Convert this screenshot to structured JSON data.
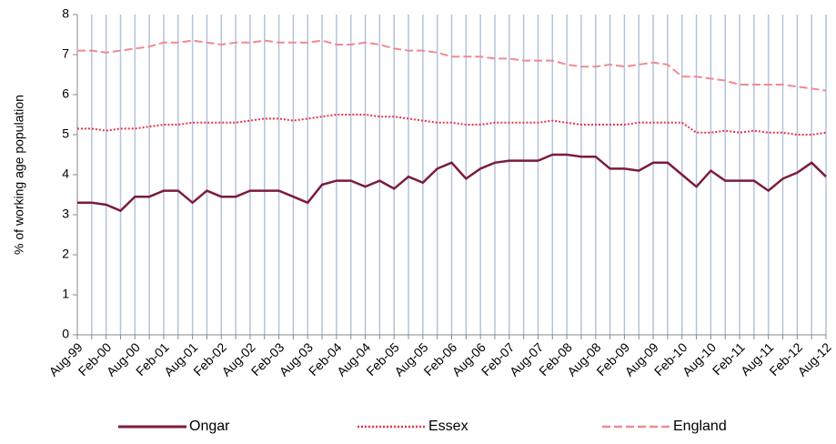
{
  "chart_data": {
    "type": "line",
    "y_label": "% of working age population",
    "categories": [
      "Aug-99",
      null,
      "Feb-00",
      null,
      "Aug-00",
      null,
      "Feb-01",
      null,
      "Aug-01",
      null,
      "Feb-02",
      null,
      "Aug-02",
      null,
      "Feb-03",
      null,
      "Aug-03",
      null,
      "Feb-04",
      null,
      "Aug-04",
      null,
      "Feb-05",
      null,
      "Aug-05",
      null,
      "Feb-06",
      null,
      "Aug-06",
      null,
      "Feb-07",
      null,
      "Aug-07",
      null,
      "Feb-08",
      null,
      "Aug-08",
      null,
      "Feb-09",
      null,
      "Aug-09",
      null,
      "Feb-10",
      null,
      "Aug-10",
      null,
      "Feb-11",
      null,
      "Aug-11",
      null,
      "Feb-12",
      null,
      "Aug-12"
    ],
    "series": [
      {
        "name": "Ongar",
        "color": "#7b1c3a",
        "style": "solid",
        "values": [
          3.3,
          3.3,
          3.25,
          3.1,
          3.45,
          3.45,
          3.6,
          3.6,
          3.3,
          3.6,
          3.45,
          3.45,
          3.6,
          3.6,
          3.6,
          3.45,
          3.3,
          3.75,
          3.85,
          3.85,
          3.7,
          3.85,
          3.65,
          3.95,
          3.8,
          4.15,
          4.3,
          3.9,
          4.15,
          4.3,
          4.35,
          4.35,
          4.35,
          4.5,
          4.5,
          4.45,
          4.45,
          4.15,
          4.15,
          4.1,
          4.3,
          4.3,
          4.0,
          3.7,
          4.1,
          3.85,
          3.85,
          3.85,
          3.6,
          3.9,
          4.05,
          4.3,
          3.95
        ]
      },
      {
        "name": "Essex",
        "color": "#e8334a",
        "style": "dotted",
        "values": [
          5.15,
          5.15,
          5.1,
          5.15,
          5.15,
          5.2,
          5.25,
          5.25,
          5.3,
          5.3,
          5.3,
          5.3,
          5.35,
          5.4,
          5.4,
          5.35,
          5.4,
          5.45,
          5.5,
          5.5,
          5.5,
          5.45,
          5.45,
          5.4,
          5.35,
          5.3,
          5.3,
          5.25,
          5.25,
          5.3,
          5.3,
          5.3,
          5.3,
          5.35,
          5.3,
          5.25,
          5.25,
          5.25,
          5.25,
          5.3,
          5.3,
          5.3,
          5.3,
          5.05,
          5.05,
          5.1,
          5.05,
          5.1,
          5.05,
          5.05,
          5.0,
          5.0,
          5.05
        ]
      },
      {
        "name": "England",
        "color": "#f08a94",
        "style": "dashed",
        "values": [
          7.1,
          7.1,
          7.05,
          7.1,
          7.15,
          7.2,
          7.3,
          7.3,
          7.35,
          7.3,
          7.25,
          7.3,
          7.3,
          7.35,
          7.3,
          7.3,
          7.3,
          7.35,
          7.25,
          7.25,
          7.3,
          7.25,
          7.15,
          7.1,
          7.1,
          7.05,
          6.95,
          6.95,
          6.95,
          6.9,
          6.9,
          6.85,
          6.85,
          6.85,
          6.75,
          6.7,
          6.7,
          6.75,
          6.7,
          6.75,
          6.8,
          6.75,
          6.45,
          6.45,
          6.4,
          6.35,
          6.25,
          6.25,
          6.25,
          6.25,
          6.2,
          6.15,
          6.1
        ]
      }
    ],
    "ylim": [
      0,
      8
    ],
    "yticks": [
      0,
      1,
      2,
      3,
      4,
      5,
      6,
      7,
      8
    ],
    "xgrid": true,
    "legend": "bottom"
  }
}
